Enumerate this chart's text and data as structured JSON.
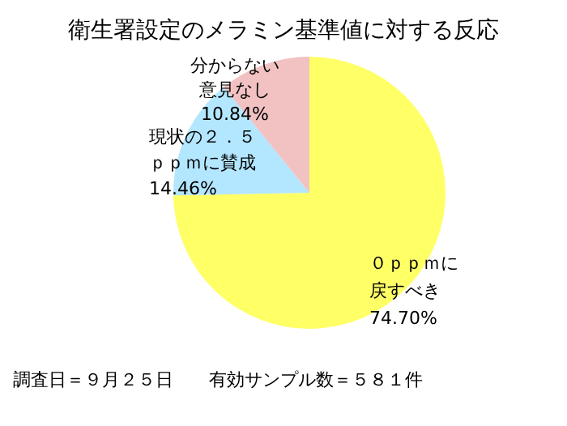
{
  "chart_data": {
    "type": "pie",
    "title": "衛生署設定のメラミン基準値に対する反応",
    "categories": [
      "０ｐｐｍに戻すべき",
      "現状の２．５ｐｐｍに賛成",
      "分からない意見なし"
    ],
    "values": [
      74.7,
      14.46,
      10.84
    ],
    "colors": [
      "#ffff66",
      "#b3e6ff",
      "#f2c2c2"
    ],
    "value_labels": [
      "74.70%",
      "14.46%",
      "10.84%"
    ],
    "annotations": [
      "調査日＝９月２５日　　有効サンプル数＝５８１件"
    ]
  }
}
